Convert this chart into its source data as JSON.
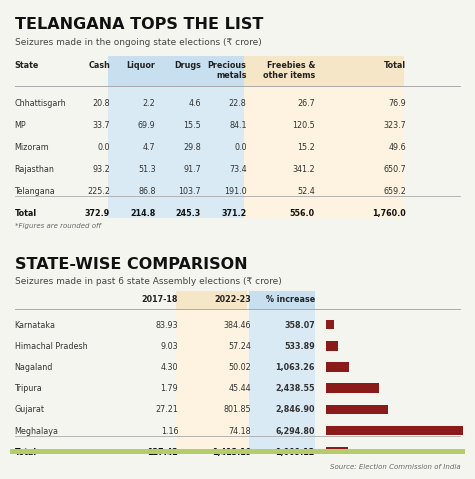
{
  "title1": "TELANGANA TOPS THE LIST",
  "subtitle1": "Seizures made in the ongoing state elections (₹ crore)",
  "table1_headers": [
    "State",
    "Cash",
    "Liquor",
    "Drugs",
    "Precious\nmetals",
    "Freebies &\nother items",
    "Total"
  ],
  "table1_rows": [
    [
      "Chhattisgarh",
      "20.8",
      "2.2",
      "4.6",
      "22.8",
      "26.7",
      "76.9"
    ],
    [
      "MP",
      "33.7",
      "69.9",
      "15.5",
      "84.1",
      "120.5",
      "323.7"
    ],
    [
      "Mizoram",
      "0.0",
      "4.7",
      "29.8",
      "0.0",
      "15.2",
      "49.6"
    ],
    [
      "Rajasthan",
      "93.2",
      "51.3",
      "91.7",
      "73.4",
      "341.2",
      "650.7"
    ],
    [
      "Telangana",
      "225.2",
      "86.8",
      "103.7",
      "191.0",
      "52.4",
      "659.2"
    ],
    [
      "Total",
      "372.9",
      "214.8",
      "245.3",
      "371.2",
      "556.0",
      "1,760.0"
    ]
  ],
  "table1_note": "*Figures are rounded off",
  "title2": "STATE-WISE COMPARISON",
  "subtitle2": "Seizures made in past 6 state Assembly elections (₹ crore)",
  "table2_headers": [
    "",
    "2017-18",
    "2022-23",
    "% increase"
  ],
  "table2_rows": [
    [
      "Karnataka",
      "83.93",
      "384.46",
      "358.07"
    ],
    [
      "Himachal Pradesh",
      "9.03",
      "57.24",
      "533.89"
    ],
    [
      "Nagaland",
      "4.30",
      "50.02",
      "1,063.26"
    ],
    [
      "Tripura",
      "1.79",
      "45.44",
      "2,438.55"
    ],
    [
      "Gujarat",
      "27.21",
      "801.85",
      "2,846.90"
    ],
    [
      "Meghalaya",
      "1.16",
      "74.18",
      "6,294.80"
    ],
    [
      "Total",
      "127.42",
      "1,413.19",
      "1,009.12"
    ]
  ],
  "bar_values": [
    358.07,
    533.89,
    1063.26,
    2438.55,
    2846.9,
    6294.8,
    1009.12
  ],
  "bar_max": 6294.8,
  "source": "Source: Election Commission of India",
  "bg_color": "#f5f5f0",
  "header_bg_blue": "#c8dff0",
  "header_bg_yellow": "#f5e6c8",
  "col_bg_blue": "#daeaf5",
  "col_bg_yellow": "#fdf3e0",
  "bar_color": "#8b1a1a",
  "title_color": "#111111",
  "header_color": "#222222",
  "row_color": "#333333",
  "total_row_color": "#111111",
  "divider_color": "#aaaaaa",
  "bottom_bar_color": "#b5cc6a"
}
